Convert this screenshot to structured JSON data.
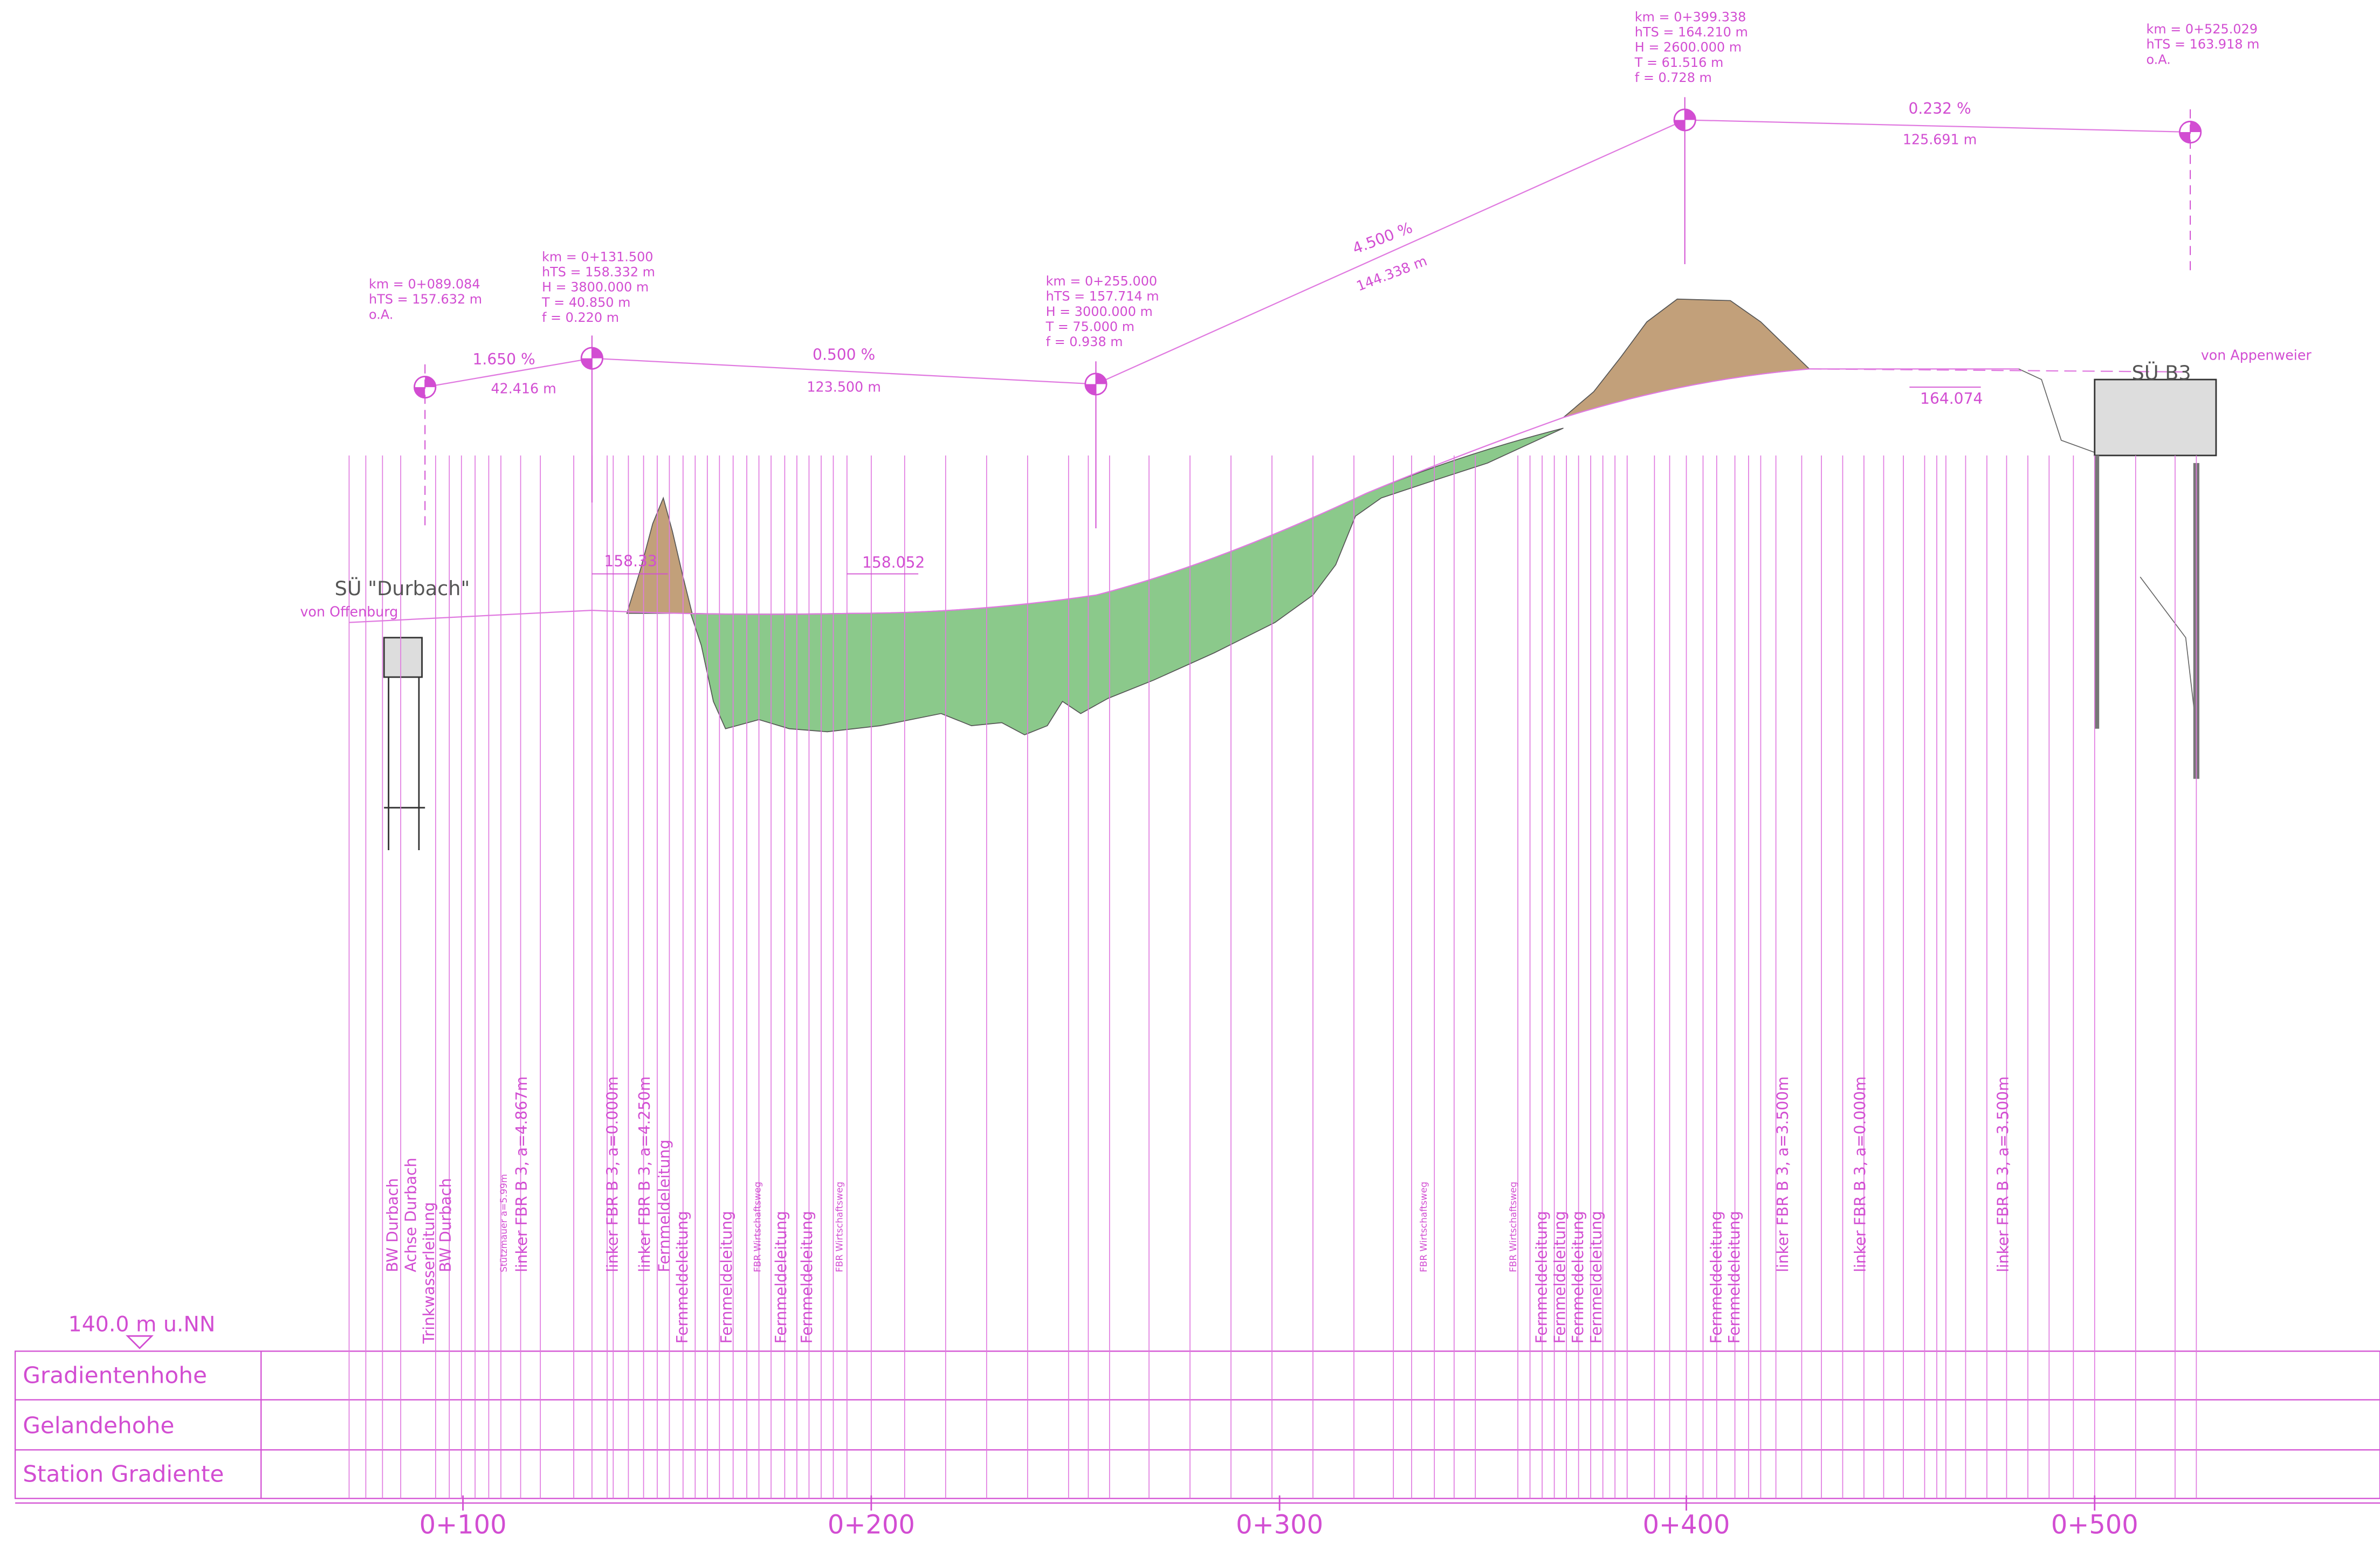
{
  "datum": "140.0 m u.NN",
  "rows": [
    "Gradientenhohe",
    "Gelandehohe",
    "Station Gradiente"
  ],
  "stations": [
    "0+100",
    "0+200",
    "0+300",
    "0+400",
    "0+500"
  ],
  "structures": [
    {
      "label": "SÜ \"Durbach\"",
      "sub": "von Offenburg"
    },
    {
      "label": "SÜ B3",
      "sub": "von Appenweier"
    }
  ],
  "vertical_points": [
    {
      "lines": [
        "km   = 0+089.084",
        "hTS = 157.632  m",
        "o.A."
      ]
    },
    {
      "lines": [
        "km   = 0+131.500",
        "hTS = 158.332  m",
        "H     = 3800.000  m",
        "T     = 40.850  m",
        "f      = 0.220  m"
      ]
    },
    {
      "lines": [
        "km   = 0+255.000",
        "hTS = 157.714  m",
        "H     = 3000.000  m",
        "T     = 75.000  m",
        "f      = 0.938  m"
      ]
    },
    {
      "lines": [
        "km   = 0+399.338",
        "hTS = 164.210  m",
        "H     = 2600.000  m",
        "T     = 61.516  m",
        "f      = 0.728  m"
      ]
    },
    {
      "lines": [
        "km   = 0+525.029",
        "hTS = 163.918  m",
        "o.A."
      ]
    }
  ],
  "grades": [
    {
      "slope": "1.650  %",
      "length": "42.416  m"
    },
    {
      "slope": "0.500  %",
      "length": "123.500  m"
    },
    {
      "slope": "4.500  %",
      "length": "144.338  m"
    },
    {
      "slope": "0.232  %",
      "length": "125.691  m"
    }
  ],
  "levels": [
    "158.33",
    "158.052",
    "164.074"
  ],
  "labels": [
    "BW Durbach",
    "Achse Durbach",
    "Trinkwasserleitung",
    "BW Durbach",
    "Stützmauer a=5.99m",
    "linker FBR B 3, a=4.867m",
    "linker FBR B 3, a=0.000m",
    "linker FBR B 3, a=4.250m",
    "Fernmeldeleitung",
    "Fernmeldeleitung",
    "Fernmeldeleitung",
    "FBR Wirtschaftsweg",
    "Fernmeldeleitung",
    "Fernmeldeleitung",
    "FBR Wirtschaftsweg",
    "FBR Wirtschaftsweg",
    "FBR Wirtschaftsweg",
    "Fernmeldeleitung",
    "Fernmeldeleitung",
    "Fernmeldeleitung",
    "Fernmeldeleitung",
    "Fernmeldeleitung",
    "Fernmeldeleitung",
    "linker FBR B 3, a=3.500m",
    "linker FBR B 3, a=0.000m",
    "linker FBR B 3, a=3.500m"
  ]
}
